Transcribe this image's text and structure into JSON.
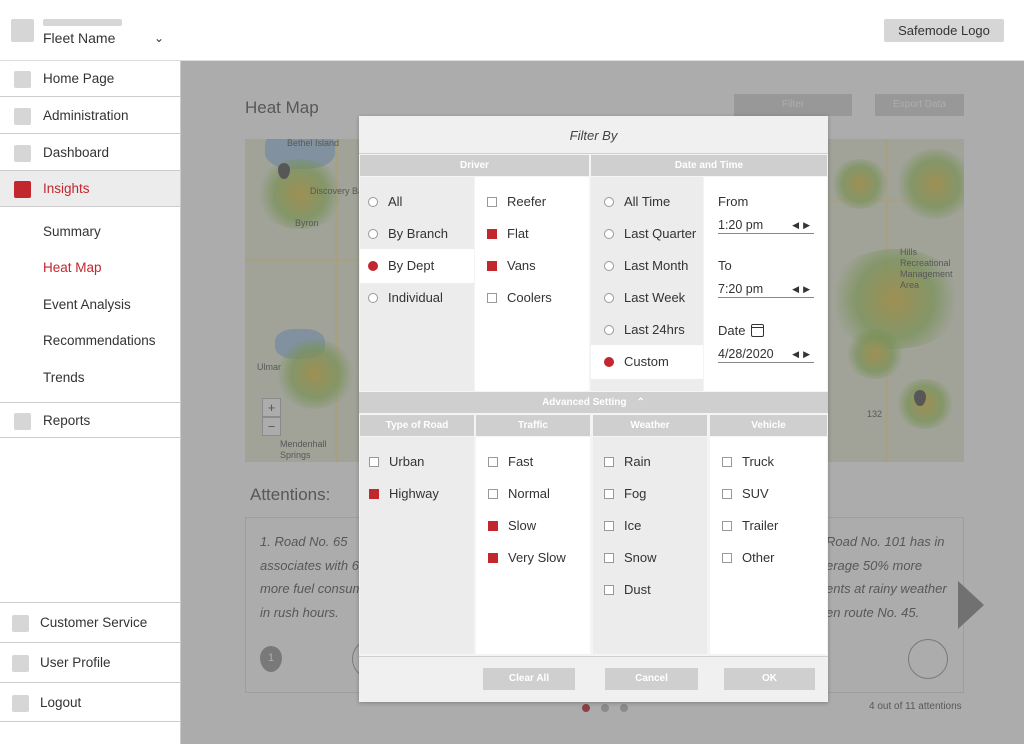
{
  "header": {
    "fleet_name": "Fleet Name",
    "logo": "Safemode Logo"
  },
  "sidebar": {
    "items": [
      {
        "label": "Home Page"
      },
      {
        "label": "Administration"
      },
      {
        "label": "Dashboard"
      },
      {
        "label": "Insights"
      },
      {
        "label": "Reports"
      }
    ],
    "sub_items": [
      {
        "label": "Summary"
      },
      {
        "label": "Heat Map"
      },
      {
        "label": "Event Analysis"
      },
      {
        "label": "Recommendations"
      },
      {
        "label": "Trends"
      }
    ],
    "bottom_items": [
      {
        "label": "Customer Service"
      },
      {
        "label": "User Profile"
      },
      {
        "label": "Logout"
      }
    ]
  },
  "main": {
    "title": "Heat Map",
    "filter_label": "Filter",
    "export_label": "Export Data",
    "map_places": [
      "Bethel Island",
      "Discovery Bay",
      "Byron",
      "Ulmar",
      "Mendenhall Springs",
      "Hills Recreational Management Area"
    ],
    "map_road_numbers": [
      "132"
    ],
    "zoom_in": "+",
    "zoom_out": "−",
    "attentions_title": "Attentions:",
    "attention_left": [
      "1. Road No. 65",
      "associates with 6",
      "more fuel consum",
      "in rush hours."
    ],
    "attention_right": [
      "Road No. 101 has in",
      "erage 50% more",
      "ents at rainy weather",
      "en route No. 45."
    ],
    "attention_marker": "1",
    "attention_count": "4 out of 11 attentions",
    "pager_active_index": 0,
    "pager_total": 3
  },
  "modal": {
    "title": "Filter By",
    "driver_header": "Driver",
    "datetime_header": "Date and Time",
    "driver_options": [
      {
        "label": "All",
        "selected": false
      },
      {
        "label": "By Branch",
        "selected": false
      },
      {
        "label": "By Dept",
        "selected": true
      },
      {
        "label": "Individual",
        "selected": false
      }
    ],
    "dept_options": [
      {
        "label": "Reefer",
        "checked": false
      },
      {
        "label": "Flat",
        "checked": true
      },
      {
        "label": "Vans",
        "checked": true
      },
      {
        "label": "Coolers",
        "checked": false
      }
    ],
    "time_options": [
      {
        "label": "All Time",
        "selected": false
      },
      {
        "label": "Last Quarter",
        "selected": false
      },
      {
        "label": "Last Month",
        "selected": false
      },
      {
        "label": "Last Week",
        "selected": false
      },
      {
        "label": "Last 24hrs",
        "selected": false
      },
      {
        "label": "Custom",
        "selected": true
      }
    ],
    "from_label": "From",
    "from_value": "1:20 pm",
    "to_label": "To",
    "to_value": "7:20 pm",
    "date_label": "Date",
    "date_value": "4/28/2020",
    "advanced_label": "Advanced Setting",
    "road_header": "Type of Road",
    "traffic_header": "Traffic",
    "weather_header": "Weather",
    "vehicle_header": "Vehicle",
    "road_options": [
      {
        "label": "Urban",
        "checked": false
      },
      {
        "label": "Highway",
        "checked": true
      }
    ],
    "traffic_options": [
      {
        "label": "Fast",
        "checked": false
      },
      {
        "label": "Normal",
        "checked": false
      },
      {
        "label": "Slow",
        "checked": true
      },
      {
        "label": "Very Slow",
        "checked": true
      }
    ],
    "weather_options": [
      {
        "label": "Rain",
        "checked": false
      },
      {
        "label": "Fog",
        "checked": false
      },
      {
        "label": "Ice",
        "checked": false
      },
      {
        "label": "Snow",
        "checked": false
      },
      {
        "label": "Dust",
        "checked": false
      }
    ],
    "vehicle_options": [
      {
        "label": "Truck",
        "checked": false
      },
      {
        "label": "SUV",
        "checked": false
      },
      {
        "label": "Trailer",
        "checked": false
      },
      {
        "label": "Other",
        "checked": false
      }
    ],
    "clear_label": "Clear All",
    "cancel_label": "Cancel",
    "ok_label": "OK"
  },
  "colors": {
    "accent": "#c1272d",
    "button_grey": "#cfcfcf",
    "placeholder_grey": "#d6d6d6"
  }
}
